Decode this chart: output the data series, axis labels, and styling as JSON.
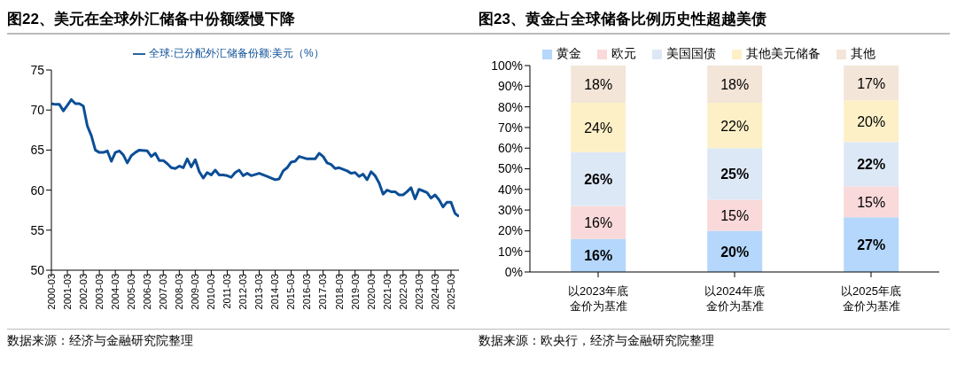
{
  "chart_data": [
    {
      "type": "line",
      "title": "图22、美元在全球外汇储备中份额缓慢下降",
      "legend": "top",
      "marker": "none",
      "xlim": [
        "2000-03",
        "2025-09"
      ],
      "xticks": [
        "2000-03",
        "2001-03",
        "2002-03",
        "2003-03",
        "2004-03",
        "2005-03",
        "2006-03",
        "2007-03",
        "2008-03",
        "2009-03",
        "2010-03",
        "2011-03",
        "2012-03",
        "2013-03",
        "2014-03",
        "2015-03",
        "2016-03",
        "2017-03",
        "2018-03",
        "2019-03",
        "2020-03",
        "2021-03",
        "2022-03",
        "2023-03",
        "2024-03",
        "2025-03"
      ],
      "ylim": [
        50,
        75
      ],
      "yticks": [
        50,
        55,
        60,
        65,
        70,
        75
      ],
      "series": [
        {
          "name": "全球:已分配外汇储备份额:美元（%）",
          "color": "#0b4e96",
          "x": [
            "2000-03",
            "2000-06",
            "2000-09",
            "2000-12",
            "2001-03",
            "2001-06",
            "2001-09",
            "2001-12",
            "2002-03",
            "2002-06",
            "2002-09",
            "2002-12",
            "2003-03",
            "2003-06",
            "2003-09",
            "2003-12",
            "2004-03",
            "2004-06",
            "2004-09",
            "2004-12",
            "2005-03",
            "2005-06",
            "2005-09",
            "2006-03",
            "2006-06",
            "2006-09",
            "2006-12",
            "2007-03",
            "2007-06",
            "2007-09",
            "2007-12",
            "2008-03",
            "2008-06",
            "2008-09",
            "2008-12",
            "2009-03",
            "2009-06",
            "2009-09",
            "2009-12",
            "2010-03",
            "2010-06",
            "2010-09",
            "2010-12",
            "2011-03",
            "2011-06",
            "2011-09",
            "2011-12",
            "2012-03",
            "2012-06",
            "2012-09",
            "2013-03",
            "2013-09",
            "2014-03",
            "2014-06",
            "2014-09",
            "2014-12",
            "2015-03",
            "2015-06",
            "2015-09",
            "2016-03",
            "2016-09",
            "2016-12",
            "2017-03",
            "2017-06",
            "2017-09",
            "2017-12",
            "2018-03",
            "2018-09",
            "2018-12",
            "2019-03",
            "2019-06",
            "2019-09",
            "2019-12",
            "2020-03",
            "2020-06",
            "2020-09",
            "2020-12",
            "2021-03",
            "2021-06",
            "2021-09",
            "2021-12",
            "2022-03",
            "2022-06",
            "2022-09",
            "2022-12",
            "2023-03",
            "2023-06",
            "2023-09",
            "2023-12",
            "2024-03",
            "2024-06",
            "2024-09",
            "2024-12",
            "2025-03",
            "2025-06",
            "2025-09"
          ],
          "values": [
            70.8,
            70.7,
            70.7,
            69.9,
            70.6,
            71.3,
            70.8,
            70.8,
            70.5,
            68.0,
            66.8,
            65.0,
            64.7,
            64.7,
            64.9,
            63.6,
            64.7,
            64.9,
            64.4,
            63.4,
            64.3,
            64.7,
            65.0,
            64.9,
            64.2,
            64.6,
            63.7,
            63.7,
            63.3,
            62.8,
            62.7,
            63.0,
            62.8,
            63.9,
            62.9,
            63.8,
            62.3,
            61.5,
            62.2,
            61.9,
            62.5,
            61.9,
            61.9,
            61.8,
            61.6,
            62.2,
            62.5,
            61.8,
            62.1,
            61.8,
            62.1,
            61.7,
            61.3,
            61.4,
            62.4,
            62.8,
            63.5,
            63.6,
            64.2,
            63.9,
            63.9,
            64.6,
            64.2,
            63.4,
            63.2,
            62.7,
            62.8,
            62.4,
            62.1,
            62.2,
            61.7,
            62.0,
            61.3,
            62.3,
            61.8,
            60.9,
            59.5,
            60.0,
            59.8,
            59.8,
            59.4,
            59.4,
            59.8,
            60.3,
            58.9,
            60.1,
            59.9,
            59.7,
            59.0,
            59.4,
            58.8,
            57.9,
            58.5,
            58.5,
            57.1,
            56.7
          ]
        }
      ],
      "annotations": [
        "数据来源：经济与金融研究院整理"
      ]
    },
    {
      "type": "bar",
      "title": "图23、黄金占全球储备比例历史性超越美债",
      "stacked": true,
      "legend": "top",
      "categories": [
        "以2023年底金价为基准",
        "以2024年底金价为基准",
        "以2025年底金价为基准"
      ],
      "ylim": [
        0,
        100
      ],
      "yticks": [
        {
          "value": 0,
          "label": "0%"
        },
        {
          "value": 10,
          "label": "10%"
        },
        {
          "value": 20,
          "label": "20%"
        },
        {
          "value": 30,
          "label": "30%"
        },
        {
          "value": 40,
          "label": "40%"
        },
        {
          "value": 50,
          "label": "50%"
        },
        {
          "value": 60,
          "label": "60%"
        },
        {
          "value": 70,
          "label": "70%"
        },
        {
          "value": 80,
          "label": "80%"
        },
        {
          "value": 90,
          "label": "90%"
        },
        {
          "value": 100,
          "label": "100%"
        }
      ],
      "series": [
        {
          "name": "黄金",
          "color": "#b4d7fb",
          "values": [
            16,
            20,
            26.5
          ],
          "value_labels": [
            "16%",
            "20%",
            "27%"
          ]
        },
        {
          "name": "欧元",
          "color": "#f9d9d9",
          "values": [
            16,
            15,
            15
          ],
          "value_labels": [
            "16%",
            "15%",
            "15%"
          ]
        },
        {
          "name": "美国国债",
          "color": "#dde8f6",
          "values": [
            26,
            25,
            21.5
          ],
          "value_labels": [
            "26%",
            "25%",
            "22%"
          ]
        },
        {
          "name": "其他美元储备",
          "color": "#fdf0c7",
          "values": [
            24,
            22,
            20
          ],
          "value_labels": [
            "24%",
            "22%",
            "20%"
          ]
        },
        {
          "name": "其他",
          "color": "#f3e5d8",
          "values": [
            18,
            18,
            17
          ],
          "value_labels": [
            "18%",
            "18%",
            "17%"
          ]
        }
      ],
      "annotations": [
        "数据来源：欧央行，经济与金融研究院整理"
      ]
    }
  ]
}
